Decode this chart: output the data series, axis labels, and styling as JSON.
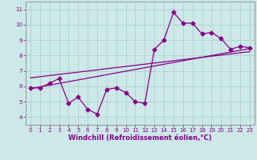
{
  "xlabel": "Windchill (Refroidissement éolien,°C)",
  "bg_color": "#cce8e8",
  "line_color": "#880088",
  "grid_color": "#aacccc",
  "xlim": [
    -0.5,
    23.5
  ],
  "ylim": [
    3.5,
    11.5
  ],
  "xticks": [
    0,
    1,
    2,
    3,
    4,
    5,
    6,
    7,
    8,
    9,
    10,
    11,
    12,
    13,
    14,
    15,
    16,
    17,
    18,
    19,
    20,
    21,
    22,
    23
  ],
  "yticks": [
    4,
    5,
    6,
    7,
    8,
    9,
    10,
    11
  ],
  "series1_x": [
    0,
    1,
    2,
    3,
    4,
    5,
    6,
    7,
    8,
    9,
    10,
    11,
    12,
    13,
    14,
    15,
    16,
    17,
    18,
    19,
    20,
    21,
    22,
    23
  ],
  "series1_y": [
    5.9,
    5.9,
    6.2,
    6.5,
    4.9,
    5.3,
    4.5,
    4.2,
    5.8,
    5.9,
    5.6,
    5.0,
    4.9,
    8.4,
    9.0,
    10.8,
    10.1,
    10.1,
    9.4,
    9.5,
    9.1,
    8.4,
    8.6,
    8.5
  ],
  "trend1_x": [
    0,
    23
  ],
  "trend1_y": [
    5.85,
    8.45
  ],
  "trend2_x": [
    0,
    23
  ],
  "trend2_y": [
    6.55,
    8.25
  ],
  "markersize": 2.5,
  "linewidth": 0.9,
  "tick_fontsize": 5.0,
  "label_fontsize": 6.0
}
